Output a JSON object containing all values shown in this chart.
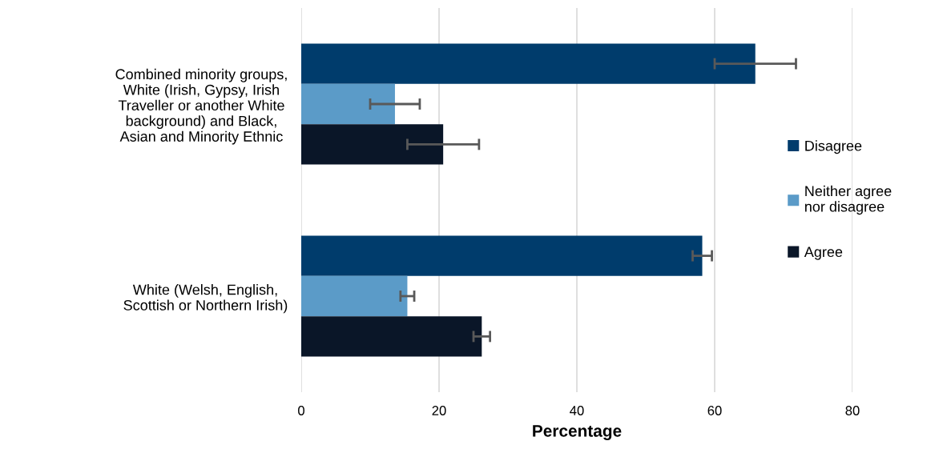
{
  "chart_data": {
    "type": "bar",
    "orientation": "horizontal",
    "xlabel": "Percentage",
    "categories": [
      "Combined minority groups,\nWhite (Irish, Gypsy, Irish\nTraveller or another White\nbackground) and Black,\nAsian and Minority Ethnic",
      "White (Welsh, English,\nScottish or Northern Irish)"
    ],
    "series": [
      {
        "name": "Disagree",
        "color": "#003c6c",
        "values": [
          65.9,
          58.2
        ],
        "errors": [
          5.9,
          1.4
        ]
      },
      {
        "name": "Neither agree\nnor disagree",
        "color": "#5b9bc8",
        "values": [
          13.6,
          15.4
        ],
        "errors": [
          3.6,
          1.0
        ]
      },
      {
        "name": "Agree",
        "color": "#0a1628",
        "values": [
          20.6,
          26.2
        ],
        "errors": [
          5.2,
          1.2
        ]
      }
    ],
    "xlim": [
      0,
      80
    ],
    "xticks": [
      0,
      20,
      40,
      60,
      80
    ],
    "grid": "x",
    "legend": "right"
  }
}
